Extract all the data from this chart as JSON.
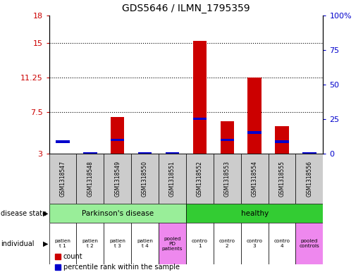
{
  "title": "GDS5646 / ILMN_1795359",
  "samples": [
    "GSM1318547",
    "GSM1318548",
    "GSM1318549",
    "GSM1318550",
    "GSM1318551",
    "GSM1318552",
    "GSM1318553",
    "GSM1318554",
    "GSM1318555",
    "GSM1318556"
  ],
  "count_values": [
    3.0,
    3.0,
    7.0,
    3.0,
    3.0,
    15.2,
    6.5,
    11.25,
    6.0,
    3.0
  ],
  "percentile_values": [
    4.3,
    3.0,
    4.5,
    3.0,
    3.0,
    6.8,
    4.5,
    5.3,
    4.3,
    3.0
  ],
  "left_yticks": [
    3,
    7.5,
    11.25,
    15,
    18
  ],
  "right_yticks": [
    0,
    25,
    50,
    75,
    100
  ],
  "right_ytick_labels": [
    "0",
    "25",
    "50",
    "75",
    "100%"
  ],
  "ymin": 3,
  "ymax": 18,
  "bar_color": "#cc0000",
  "blue_color": "#0000cc",
  "disease_state_parkinsons_label": "Parkinson's disease",
  "disease_state_healthy_label": "healthy",
  "disease_state_color_parkinsons": "#99ee99",
  "disease_state_color_healthy": "#33cc33",
  "individual_labels": [
    "patien\nt 1",
    "patien\nt 2",
    "patien\nt 3",
    "patien\nt 4",
    "pooled\nPD\npatients",
    "contro\n1",
    "contro\n2",
    "contro\n3",
    "contro\n4",
    "pooled\ncontrols"
  ],
  "individual_colors_per_col": [
    "#ffffff",
    "#ffffff",
    "#ffffff",
    "#ffffff",
    "#ee88ee",
    "#ffffff",
    "#ffffff",
    "#ffffff",
    "#ffffff",
    "#ee88ee"
  ],
  "bg_color": "#ffffff",
  "sample_box_color": "#cccccc",
  "left_yaxis_color": "#cc0000",
  "right_yaxis_color": "#0000cc",
  "legend_count_label": "count",
  "legend_percentile_label": "percentile rank within the sample",
  "n_parkinsons": 5,
  "n_healthy": 5
}
